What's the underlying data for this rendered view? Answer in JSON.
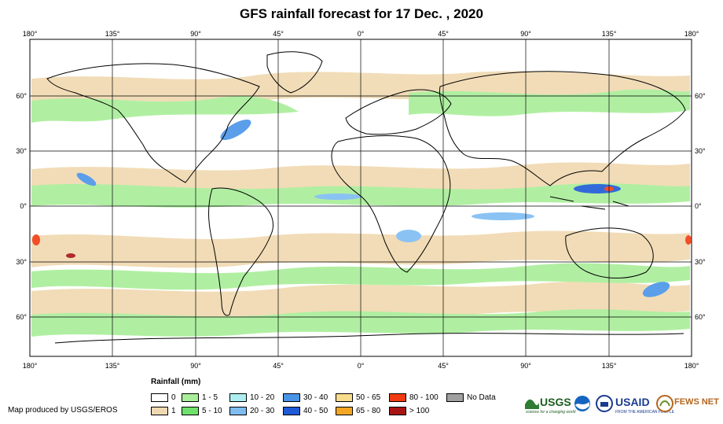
{
  "title": "GFS rainfall forecast for 17 Dec. , 2020",
  "lon_ticks": [
    "180°",
    "135°",
    "90°",
    "45°",
    "0°",
    "45°",
    "90°",
    "135°",
    "180°"
  ],
  "lat_ticks": [
    "60°",
    "30°",
    "0°",
    "30°",
    "60°"
  ],
  "legend": {
    "title": "Rainfall (mm)",
    "items": [
      {
        "label": "0",
        "color": "#ffffff"
      },
      {
        "label": "1",
        "color": "#f0d9b0"
      },
      {
        "label": "1 - 5",
        "color": "#a8ee98"
      },
      {
        "label": "5 - 10",
        "color": "#6ee06c"
      },
      {
        "label": "10 - 20",
        "color": "#aeeef0"
      },
      {
        "label": "20 - 30",
        "color": "#7ebcf2"
      },
      {
        "label": "30 - 40",
        "color": "#4a94e8"
      },
      {
        "label": "40 - 50",
        "color": "#1e5ad6"
      },
      {
        "label": "50 - 65",
        "color": "#f7dd8c"
      },
      {
        "label": "65 - 80",
        "color": "#f5a623"
      },
      {
        "label": "80 - 100",
        "color": "#f23b10"
      },
      {
        "label": "> 100",
        "color": "#a81414"
      },
      {
        "label": "No Data",
        "color": "#a0a0a0"
      }
    ]
  },
  "credit": "Map produced by USGS/EROS",
  "logos": {
    "usgs": "USGS",
    "usgs_tagline": "science for a changing world",
    "usaid": "USAID",
    "usaid_tagline": "FROM THE AMERICAN PEOPLE",
    "fews": "FEWS NET"
  }
}
